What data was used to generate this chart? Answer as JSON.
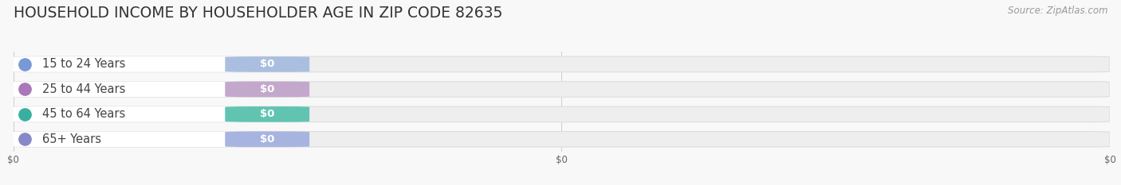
{
  "title": "HOUSEHOLD INCOME BY HOUSEHOLDER AGE IN ZIP CODE 82635",
  "source": "Source: ZipAtlas.com",
  "categories": [
    "15 to 24 Years",
    "25 to 44 Years",
    "45 to 64 Years",
    "65+ Years"
  ],
  "values": [
    0,
    0,
    0,
    0
  ],
  "bar_colors": [
    "#aabfe0",
    "#c4a8cc",
    "#60c4b0",
    "#a8b4e0"
  ],
  "dot_colors": [
    "#7898d8",
    "#a878b8",
    "#38b0a0",
    "#8888c8"
  ],
  "label_bg_color": "#ffffff",
  "bar_bg_color": "#eeeeee",
  "bar_edge_color": "#dddddd",
  "label_color": "#444444",
  "value_label_color": "#ffffff",
  "title_color": "#333333",
  "source_color": "#999999",
  "background_color": "#f8f8f8",
  "xlim": [
    0,
    1
  ],
  "bar_height": 0.62,
  "title_fontsize": 13.5,
  "label_fontsize": 10.5,
  "value_fontsize": 9.5,
  "source_fontsize": 8.5,
  "tick_fontsize": 8.5,
  "xtick_labels": [
    "$0",
    "$0",
    "$0"
  ],
  "xtick_positions": [
    0.0,
    0.5,
    1.0
  ]
}
